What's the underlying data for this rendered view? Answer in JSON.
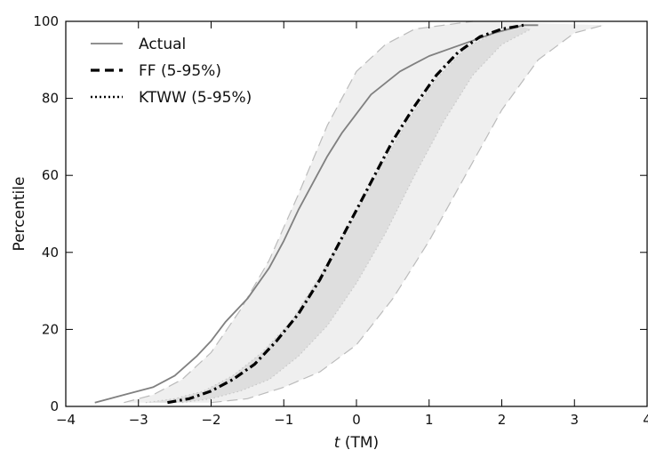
{
  "chart_data": {
    "type": "line",
    "xlabel_italic": "t",
    "xlabel_rest": " (TM)",
    "ylabel": "Percentile",
    "xlim": [
      -4,
      4
    ],
    "ylim": [
      0,
      100
    ],
    "x_ticks": [
      -4,
      -3,
      -2,
      -1,
      0,
      1,
      2,
      3,
      4
    ],
    "y_ticks": [
      0,
      20,
      40,
      60,
      80,
      100
    ],
    "x_tick_labels": [
      "−4",
      "−3",
      "−2",
      "−1",
      "0",
      "1",
      "2",
      "3",
      "4"
    ],
    "y_tick_labels": [
      "0",
      "20",
      "40",
      "60",
      "80",
      "100"
    ],
    "grid": false,
    "legend_position": "upper-left",
    "series": [
      {
        "name": "Actual",
        "style": "solid",
        "color": "#808080",
        "x": [
          -3.6,
          -3.2,
          -2.8,
          -2.5,
          -2.2,
          -2.0,
          -1.8,
          -1.5,
          -1.2,
          -1.0,
          -0.8,
          -0.6,
          -0.4,
          -0.2,
          0.0,
          0.2,
          0.4,
          0.6,
          0.8,
          1.0,
          1.3,
          1.6,
          1.9,
          2.1,
          2.3,
          2.5
        ],
        "y": [
          1,
          3,
          5,
          8,
          13,
          17,
          22,
          28,
          36,
          43,
          51,
          58,
          65,
          71,
          76,
          81,
          84,
          87,
          89,
          91,
          93,
          95,
          97,
          98,
          99,
          99
        ]
      },
      {
        "name": "FF (5-95%)",
        "style": "dashdot",
        "color": "#000000",
        "x": [
          -2.6,
          -2.3,
          -2.0,
          -1.7,
          -1.4,
          -1.1,
          -0.8,
          -0.5,
          -0.25,
          0.0,
          0.25,
          0.5,
          0.8,
          1.1,
          1.4,
          1.7,
          2.0,
          2.3
        ],
        "y": [
          1,
          2,
          4,
          7,
          11,
          17,
          24,
          33,
          42,
          51,
          60,
          69,
          78,
          86,
          92,
          96,
          98,
          99
        ]
      },
      {
        "name": "KTWW (5-95%)",
        "style": "dotted",
        "color": "#000000",
        "x": [],
        "y": []
      }
    ],
    "bands": [
      {
        "label": "FF 5-95% band",
        "fill": "#efefef",
        "edge": "#bbbbbb",
        "edge_style": "dashed",
        "lower_x": [
          -2.0,
          -1.5,
          -1.0,
          -0.5,
          0.0,
          0.5,
          1.0,
          1.5,
          2.0,
          2.5,
          3.0,
          3.4
        ],
        "lower_y": [
          1,
          2,
          5,
          9,
          16,
          28,
          43,
          60,
          77,
          90,
          97,
          99
        ],
        "upper_x": [
          -3.2,
          -2.8,
          -2.4,
          -2.0,
          -1.6,
          -1.2,
          -0.8,
          -0.4,
          0.0,
          0.4,
          0.8,
          1.2,
          1.6
        ],
        "upper_y": [
          1,
          3,
          7,
          14,
          25,
          38,
          55,
          73,
          87,
          94,
          98,
          99,
          100
        ]
      },
      {
        "label": "KTWW 5-95% band",
        "fill": "#dedede",
        "edge": "#c8c8c8",
        "edge_style": "dotted",
        "lower_x": [
          -2.4,
          -2.0,
          -1.6,
          -1.2,
          -0.8,
          -0.4,
          0.0,
          0.4,
          0.8,
          1.2,
          1.6,
          2.0,
          2.4
        ],
        "lower_y": [
          1,
          2,
          4,
          7,
          13,
          21,
          32,
          45,
          60,
          74,
          86,
          94,
          98
        ],
        "upper_x": [
          -2.9,
          -2.5,
          -2.1,
          -1.7,
          -1.3,
          -0.9,
          -0.5,
          -0.1,
          0.3,
          0.7,
          1.1,
          1.5,
          1.9,
          2.2
        ],
        "upper_y": [
          1,
          2,
          4,
          8,
          14,
          22,
          34,
          47,
          61,
          74,
          85,
          93,
          97,
          99
        ]
      }
    ]
  }
}
